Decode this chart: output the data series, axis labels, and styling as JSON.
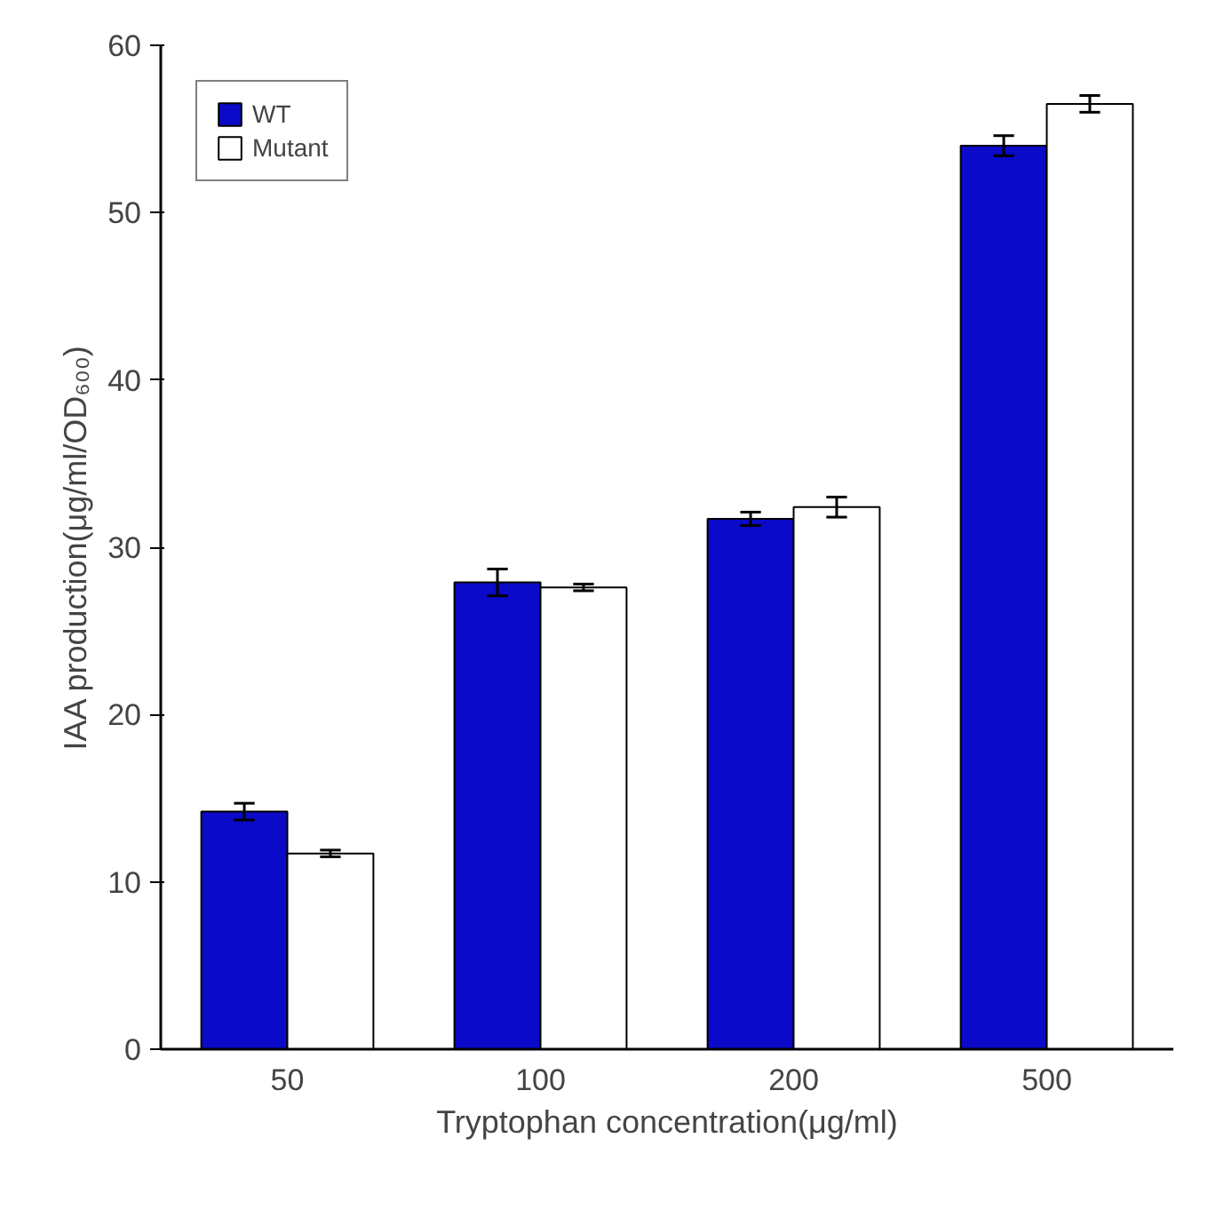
{
  "chart_data": {
    "type": "bar",
    "xlabel": "Tryptophan concentration(μg/ml)",
    "ylabel": "IAA production(μg/ml/OD₆₀₀)",
    "categories": [
      "50",
      "100",
      "200",
      "500"
    ],
    "series": [
      {
        "name": "WT",
        "color": "#0a0ac8",
        "values": [
          14.2,
          27.9,
          31.7,
          54.0
        ],
        "errors": [
          0.5,
          0.8,
          0.4,
          0.6
        ]
      },
      {
        "name": "Mutant",
        "color": "#ffffff",
        "values": [
          11.7,
          27.6,
          32.4,
          56.5
        ],
        "errors": [
          0.2,
          0.2,
          0.6,
          0.5
        ]
      }
    ],
    "ylim": [
      0,
      60
    ],
    "yticks": [
      0,
      10,
      20,
      30,
      40,
      50,
      60
    ],
    "grid": false,
    "legend": "top left"
  }
}
